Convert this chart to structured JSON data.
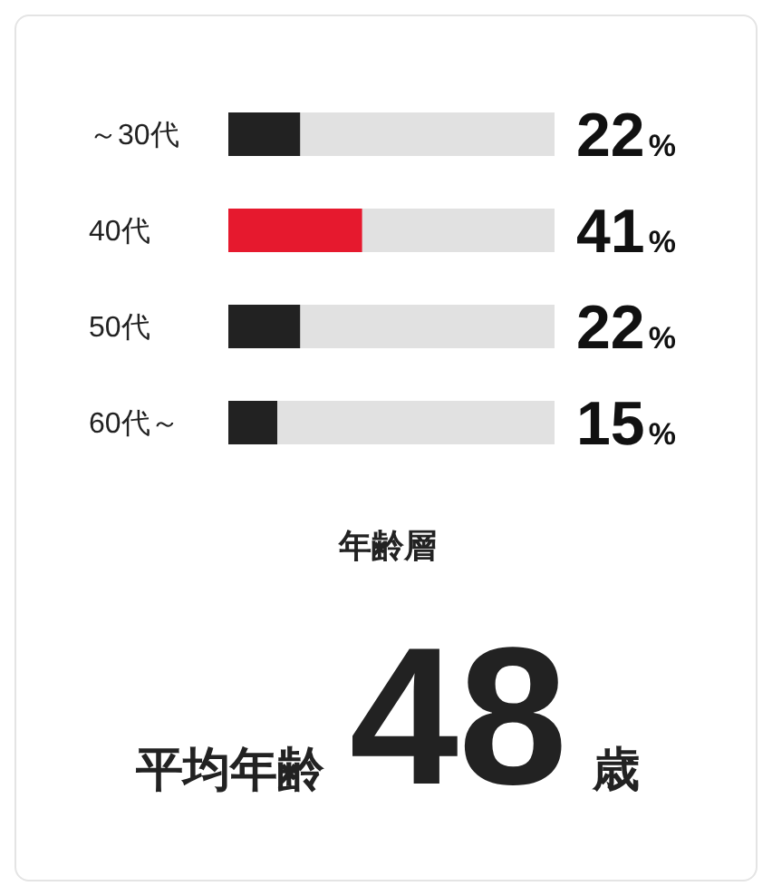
{
  "chart_data": {
    "type": "bar",
    "orientation": "horizontal",
    "categories": [
      "～30代",
      "40代",
      "50代",
      "60代～"
    ],
    "values": [
      22,
      41,
      22,
      15
    ],
    "colors": [
      "#222222",
      "#e6192e",
      "#222222",
      "#222222"
    ],
    "value_labels": [
      "22%",
      "41%",
      "22%",
      "15%"
    ],
    "xlim": [
      0,
      100
    ],
    "xlabel": "年齢層",
    "annotations": [
      "平均年齢",
      "48",
      "歳"
    ]
  }
}
